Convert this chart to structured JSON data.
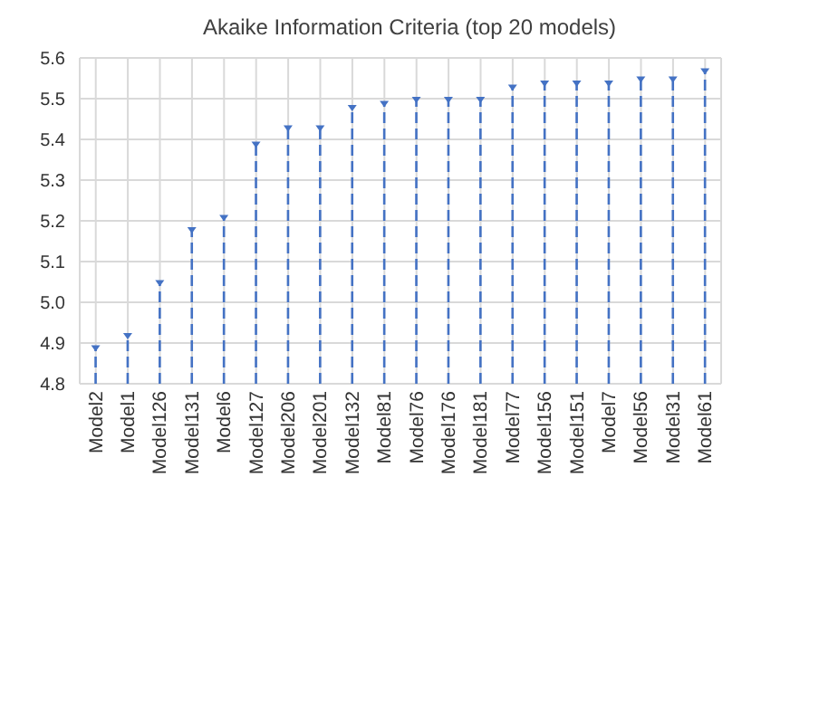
{
  "chart_data": {
    "type": "lollipop",
    "title": "Akaike Information Criteria (top 20 models)",
    "categories": [
      "Model2",
      "Model1",
      "Model126",
      "Model131",
      "Model6",
      "Model127",
      "Model206",
      "Model201",
      "Model132",
      "Model81",
      "Model76",
      "Model176",
      "Model181",
      "Model77",
      "Model156",
      "Model151",
      "Model7",
      "Model56",
      "Model31",
      "Model61"
    ],
    "values": [
      4.89,
      4.92,
      5.05,
      5.18,
      5.21,
      5.39,
      5.43,
      5.43,
      5.48,
      5.49,
      5.5,
      5.5,
      5.5,
      5.53,
      5.54,
      5.54,
      5.54,
      5.55,
      5.55,
      5.57
    ],
    "color": "#4472c4",
    "ylim": [
      4.8,
      5.6
    ],
    "yticks": [
      4.8,
      4.9,
      {
        "value": 5,
        "label": "5.0"
      },
      5.1,
      5.2,
      5.3,
      5.4,
      5.5,
      5.6
    ],
    "grid": true,
    "marker": "triangle",
    "line_style": "dashed"
  }
}
